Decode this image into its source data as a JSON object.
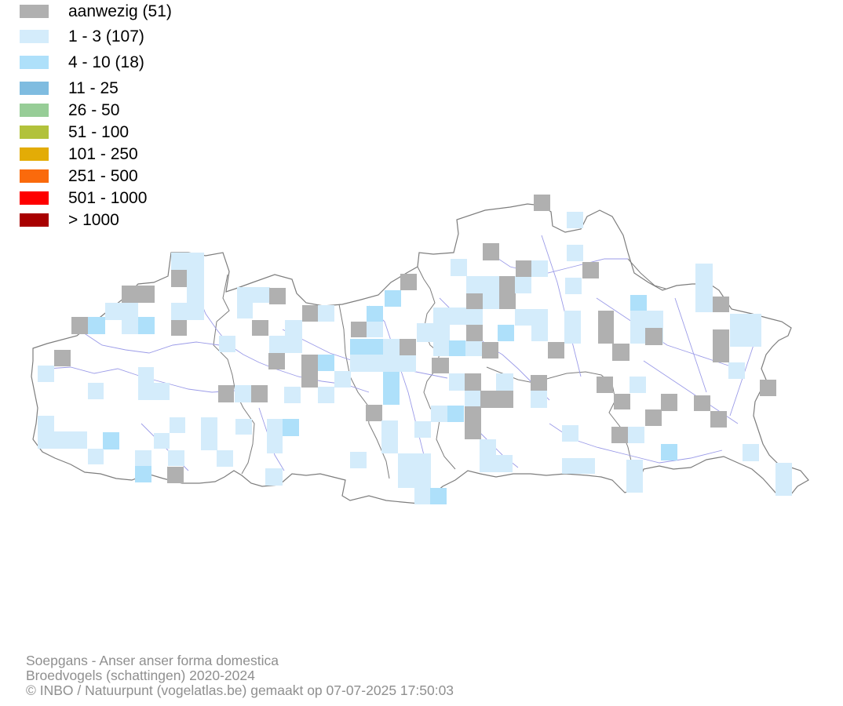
{
  "legend": {
    "items": [
      {
        "label": "aanwezig (51)",
        "color": "#b0b0b0"
      },
      {
        "label": "1 - 3 (107)",
        "color": "#d4ecfb"
      },
      {
        "label": "4 - 10 (18)",
        "color": "#aee0fa"
      },
      {
        "label": "11 - 25",
        "color": "#7fbce0"
      },
      {
        "label": "26 - 50",
        "color": "#97cd97"
      },
      {
        "label": "51 - 100",
        "color": "#b2c23b"
      },
      {
        "label": "101 - 250",
        "color": "#e3ac06"
      },
      {
        "label": "251 - 500",
        "color": "#fa6a0c"
      },
      {
        "label": "501 - 1000",
        "color": "#fe0000"
      },
      {
        "label": "> 1000",
        "color": "#a80000"
      }
    ]
  },
  "footer": {
    "species": "Soepgans - Anser anser forma domestica",
    "survey": "Broedvogels (schattingen) 2020-2024",
    "credit": "© INBO / Natuurpunt (vogelatlas.be) gemaakt op 07-07-2025 17:50:03"
  },
  "map": {
    "border_color": "#7d7d7d",
    "river_color": "#9b9be8"
  }
}
